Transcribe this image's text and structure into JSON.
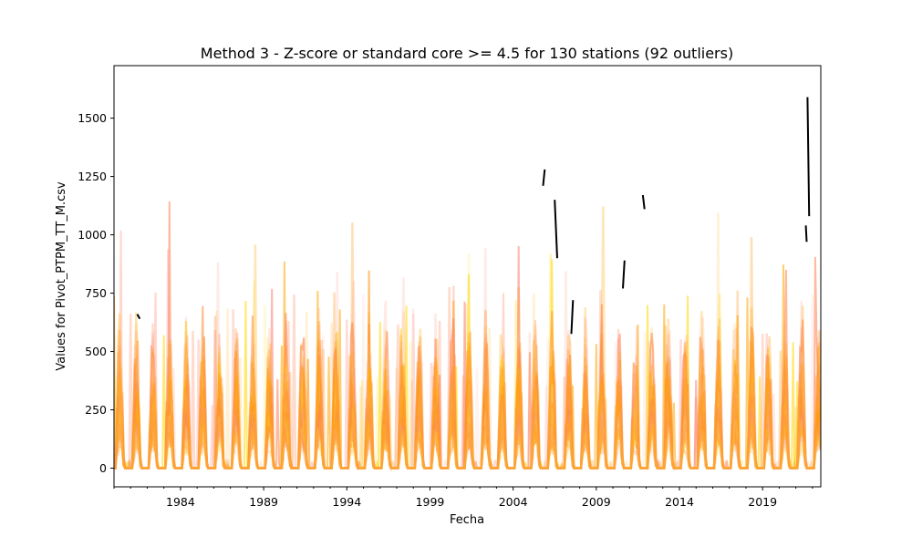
{
  "chart_data": {
    "type": "line",
    "title": "Method 3 - Z-score or standard core >= 4.5 for 130 stations (92 outliers)",
    "xlabel": "Fecha",
    "ylabel": "Values for Pivot_PTPM_TT_M.csv",
    "xlim": [
      1980.0,
      2022.5
    ],
    "ylim": [
      -80,
      1725
    ],
    "x_ticks": [
      1984,
      1989,
      1994,
      1999,
      2004,
      2009,
      2014,
      2019
    ],
    "x_tick_labels": [
      "1984",
      "1989",
      "1994",
      "1999",
      "2004",
      "2009",
      "2014",
      "2019"
    ],
    "y_ticks": [
      0,
      250,
      500,
      750,
      1000,
      1250,
      1500
    ],
    "y_tick_labels": [
      "0",
      "250",
      "500",
      "750",
      "1000",
      "1250",
      "1500"
    ],
    "grid": false,
    "series_colors": [
      "#ffd700",
      "#ffa500",
      "#ff8c00",
      "#ff7f50",
      "#fa8072",
      "#ffb6a0"
    ],
    "outlier_color": "#000000",
    "station_count": 130,
    "outlier_count": 92,
    "outlier_segments": [
      {
        "x": [
          1981.4,
          1981.55
        ],
        "y": [
          660,
          640
        ]
      },
      {
        "x": [
          2005.8,
          2005.9
        ],
        "y": [
          1210,
          1280
        ]
      },
      {
        "x": [
          2006.5,
          2006.65
        ],
        "y": [
          1150,
          900
        ]
      },
      {
        "x": [
          2007.5,
          2007.6
        ],
        "y": [
          575,
          720
        ]
      },
      {
        "x": [
          2010.6,
          2010.7
        ],
        "y": [
          770,
          890
        ]
      },
      {
        "x": [
          2011.8,
          2011.9
        ],
        "y": [
          1170,
          1110
        ]
      },
      {
        "x": [
          2021.6,
          2021.65
        ],
        "y": [
          1040,
          970
        ]
      },
      {
        "x": [
          2021.7,
          2021.8
        ],
        "y": [
          1590,
          1080
        ]
      }
    ]
  }
}
